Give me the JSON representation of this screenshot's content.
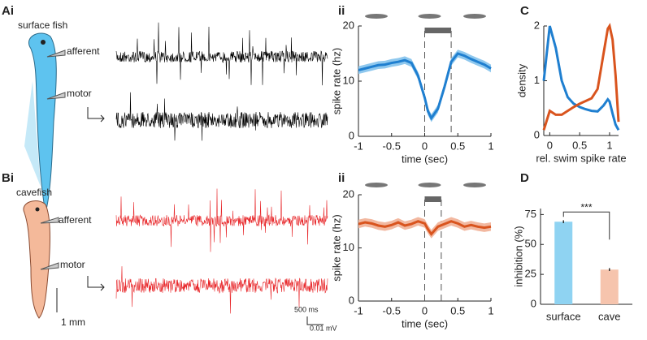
{
  "figure": {
    "panel_labels": [
      "Ai",
      "ii",
      "C",
      "Bi",
      "ii",
      "D"
    ],
    "surface_fish": "surface fish",
    "cavefish": "cavefish",
    "afferent": "afferent",
    "motor": "motor",
    "scale_mm": "1 mm",
    "scale_ms": "500 ms",
    "scale_mv": "0.01 mV"
  },
  "chart_data": [
    {
      "type": "line",
      "xlabel": "time (sec)",
      "ylabel": "spike rate (hz)",
      "xlim": [
        -1,
        1
      ],
      "xticks": [
        -1,
        -0.5,
        0,
        0.5,
        1
      ],
      "ylim": [
        0,
        20
      ],
      "yticks": [
        0,
        10,
        20
      ],
      "swim_window": [
        0,
        0.4
      ],
      "series": [
        {
          "color": "#1f7fd0",
          "band_color": "#8fc8ee",
          "x": [
            -1,
            -0.9,
            -0.8,
            -0.7,
            -0.6,
            -0.5,
            -0.4,
            -0.3,
            -0.2,
            -0.1,
            0,
            0.05,
            0.1,
            0.2,
            0.3,
            0.4,
            0.5,
            0.6,
            0.7,
            0.8,
            0.9,
            1
          ],
          "values": [
            12,
            12.3,
            12.6,
            12.9,
            13,
            13.3,
            13.5,
            13.8,
            13.3,
            11,
            7,
            4.5,
            3.3,
            5,
            9,
            13.5,
            15,
            14.6,
            14,
            13.5,
            13,
            12.3
          ],
          "errors": [
            0.7,
            0.7,
            0.7,
            0.7,
            0.7,
            0.7,
            0.7,
            0.7,
            0.7,
            0.7,
            0.7,
            0.7,
            0.7,
            0.7,
            0.7,
            0.7,
            0.7,
            0.7,
            0.7,
            0.7,
            0.7,
            0.7
          ]
        }
      ]
    },
    {
      "type": "line",
      "xlabel": "rel. swim spike rate",
      "ylabel": "density",
      "xlim": [
        -0.1,
        1.15
      ],
      "xticks": [
        0,
        0.5,
        1
      ],
      "ylim": [
        0,
        2
      ],
      "yticks": [
        0,
        1,
        2
      ],
      "series": [
        {
          "color": "#1f7fd0",
          "x": [
            -0.1,
            0,
            0.1,
            0.2,
            0.3,
            0.4,
            0.5,
            0.6,
            0.7,
            0.8,
            0.9,
            0.97,
            1,
            1.05,
            1.1,
            1.15
          ],
          "values": [
            1.0,
            2.0,
            1.6,
            1.0,
            0.7,
            0.58,
            0.52,
            0.48,
            0.45,
            0.44,
            0.55,
            0.66,
            0.62,
            0.4,
            0.2,
            0.1
          ]
        },
        {
          "color": "#d9541e",
          "x": [
            -0.1,
            0,
            0.1,
            0.2,
            0.3,
            0.4,
            0.5,
            0.6,
            0.7,
            0.8,
            0.9,
            0.97,
            1,
            1.05,
            1.1,
            1.15
          ],
          "values": [
            0.1,
            0.45,
            0.38,
            0.38,
            0.45,
            0.52,
            0.58,
            0.63,
            0.68,
            0.85,
            1.5,
            1.95,
            2.0,
            1.75,
            1.1,
            0.25
          ]
        }
      ]
    },
    {
      "type": "line",
      "xlabel": "time (sec)",
      "ylabel": "spike rate (hz)",
      "xlim": [
        -1,
        1
      ],
      "xticks": [
        -1,
        -0.5,
        0,
        0.5,
        1
      ],
      "ylim": [
        0,
        20
      ],
      "yticks": [
        0,
        10,
        20
      ],
      "swim_window": [
        0,
        0.25
      ],
      "series": [
        {
          "color": "#d9541e",
          "band_color": "#f2b8a0",
          "x": [
            -1,
            -0.9,
            -0.8,
            -0.7,
            -0.6,
            -0.5,
            -0.4,
            -0.3,
            -0.2,
            -0.1,
            0,
            0.05,
            0.1,
            0.2,
            0.3,
            0.4,
            0.5,
            0.6,
            0.7,
            0.8,
            0.9,
            1
          ],
          "values": [
            14.5,
            14.8,
            14.6,
            14.2,
            14,
            14.3,
            14.8,
            14.2,
            14.5,
            15,
            14.6,
            13.5,
            12.6,
            14,
            14.5,
            15,
            14.6,
            14,
            14.3,
            14,
            13.8,
            14
          ],
          "errors": [
            0.8,
            0.8,
            0.8,
            0.8,
            0.8,
            0.8,
            0.8,
            0.8,
            0.8,
            0.8,
            0.8,
            0.8,
            0.8,
            0.8,
            0.8,
            0.8,
            0.8,
            0.8,
            0.8,
            0.8,
            0.8,
            0.8
          ]
        }
      ]
    },
    {
      "type": "bar",
      "ylabel": "inhibition (%)",
      "annotation": "***",
      "categories": [
        "surface",
        "cave"
      ],
      "values": [
        69,
        29
      ],
      "errors": [
        1.2,
        1.2
      ],
      "colors": [
        "#8fd3f2",
        "#f6c4ad"
      ],
      "ylim": [
        0,
        80
      ],
      "yticks": [
        0,
        25,
        50,
        75
      ]
    }
  ]
}
